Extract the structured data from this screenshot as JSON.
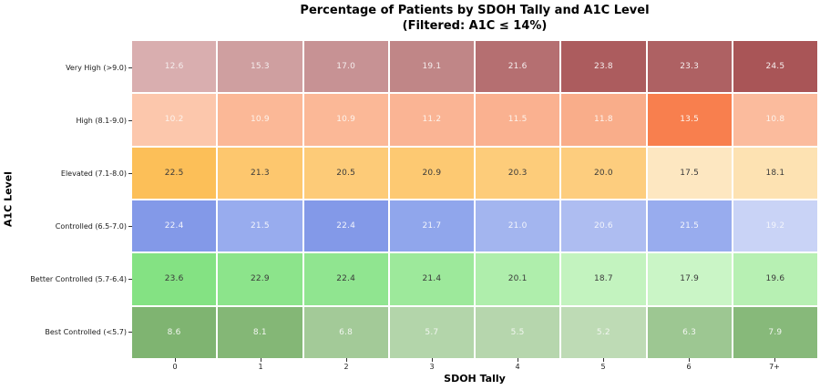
{
  "title": {
    "line1": "Percentage of Patients by SDOH Tally and A1C Level",
    "line2": "(Filtered: A1C ≤ 14%)"
  },
  "axes": {
    "x_title": "SDOH Tally",
    "y_title": "A1C Level"
  },
  "chart_data": {
    "type": "heatmap",
    "title": "Percentage of Patients by SDOH Tally and A1C Level (Filtered: A1C ≤ 14%)",
    "xlabel": "SDOH Tally",
    "ylabel": "A1C Level",
    "grid_line_color": "#ffffff",
    "x_categories": [
      "0",
      "1",
      "2",
      "3",
      "4",
      "5",
      "6",
      "7+"
    ],
    "y_categories": [
      "Very High (>9.0)",
      "High (8.1-9.0)",
      "Elevated (7.1-8.0)",
      "Controlled (6.5-7.0)",
      "Better Controlled (5.7-6.4)",
      "Best Controlled (<5.7)"
    ],
    "rows": [
      {
        "label": "Very High (>9.0)",
        "values": [
          12.6,
          15.3,
          17.0,
          19.1,
          21.6,
          23.8,
          23.3,
          24.5
        ],
        "colors": [
          "#d9aeaf",
          "#cf9fa0",
          "#c79294",
          "#c08687",
          "#b56f71",
          "#ac5c5e",
          "#ae6163",
          "#a95557"
        ],
        "value_color": "#f5eded"
      },
      {
        "label": "High (8.1-9.0)",
        "values": [
          10.2,
          10.9,
          10.9,
          11.2,
          11.5,
          11.8,
          13.5,
          10.8
        ],
        "colors": [
          "#fcc7ac",
          "#fbb897",
          "#fbb897",
          "#fab494",
          "#fab190",
          "#f9ad8a",
          "#f87f4e",
          "#fbbb9d"
        ],
        "value_color": "#fdf3ec"
      },
      {
        "label": "Elevated (7.1-8.0)",
        "values": [
          22.5,
          21.3,
          20.5,
          20.9,
          20.3,
          20.0,
          17.5,
          18.1
        ],
        "colors": [
          "#fcbf58",
          "#fdc76e",
          "#fdcb78",
          "#fdc972",
          "#fdcc7a",
          "#fdcd7e",
          "#fde7c1",
          "#fde2b2"
        ],
        "value_color": "#3a3a3a"
      },
      {
        "label": "Controlled (6.5-7.0)",
        "values": [
          22.4,
          21.5,
          22.4,
          21.7,
          21.0,
          20.6,
          21.5,
          19.2
        ],
        "colors": [
          "#8399e8",
          "#98acee",
          "#8399e8",
          "#90a6ec",
          "#a3b5ef",
          "#aebdf1",
          "#98acee",
          "#c9d3f6"
        ],
        "value_color": "#f2f4fc"
      },
      {
        "label": "Better Controlled (5.7-6.4)",
        "values": [
          23.6,
          22.9,
          22.4,
          21.4,
          20.1,
          18.7,
          17.9,
          19.6
        ],
        "colors": [
          "#84e283",
          "#8ce48b",
          "#90e590",
          "#9de99b",
          "#afeeac",
          "#c3f3bf",
          "#caf5c6",
          "#b7f0b3"
        ],
        "value_color": "#3a3a3a"
      },
      {
        "label": "Best Controlled (<5.7)",
        "values": [
          8.6,
          8.1,
          6.8,
          5.7,
          5.5,
          5.2,
          6.3,
          7.9
        ],
        "colors": [
          "#7fb471",
          "#84b776",
          "#a3ca98",
          "#b3d5aa",
          "#b6d6ad",
          "#bedbb5",
          "#9dc792",
          "#87b97a"
        ],
        "value_color": "#f2f6f0"
      }
    ]
  }
}
